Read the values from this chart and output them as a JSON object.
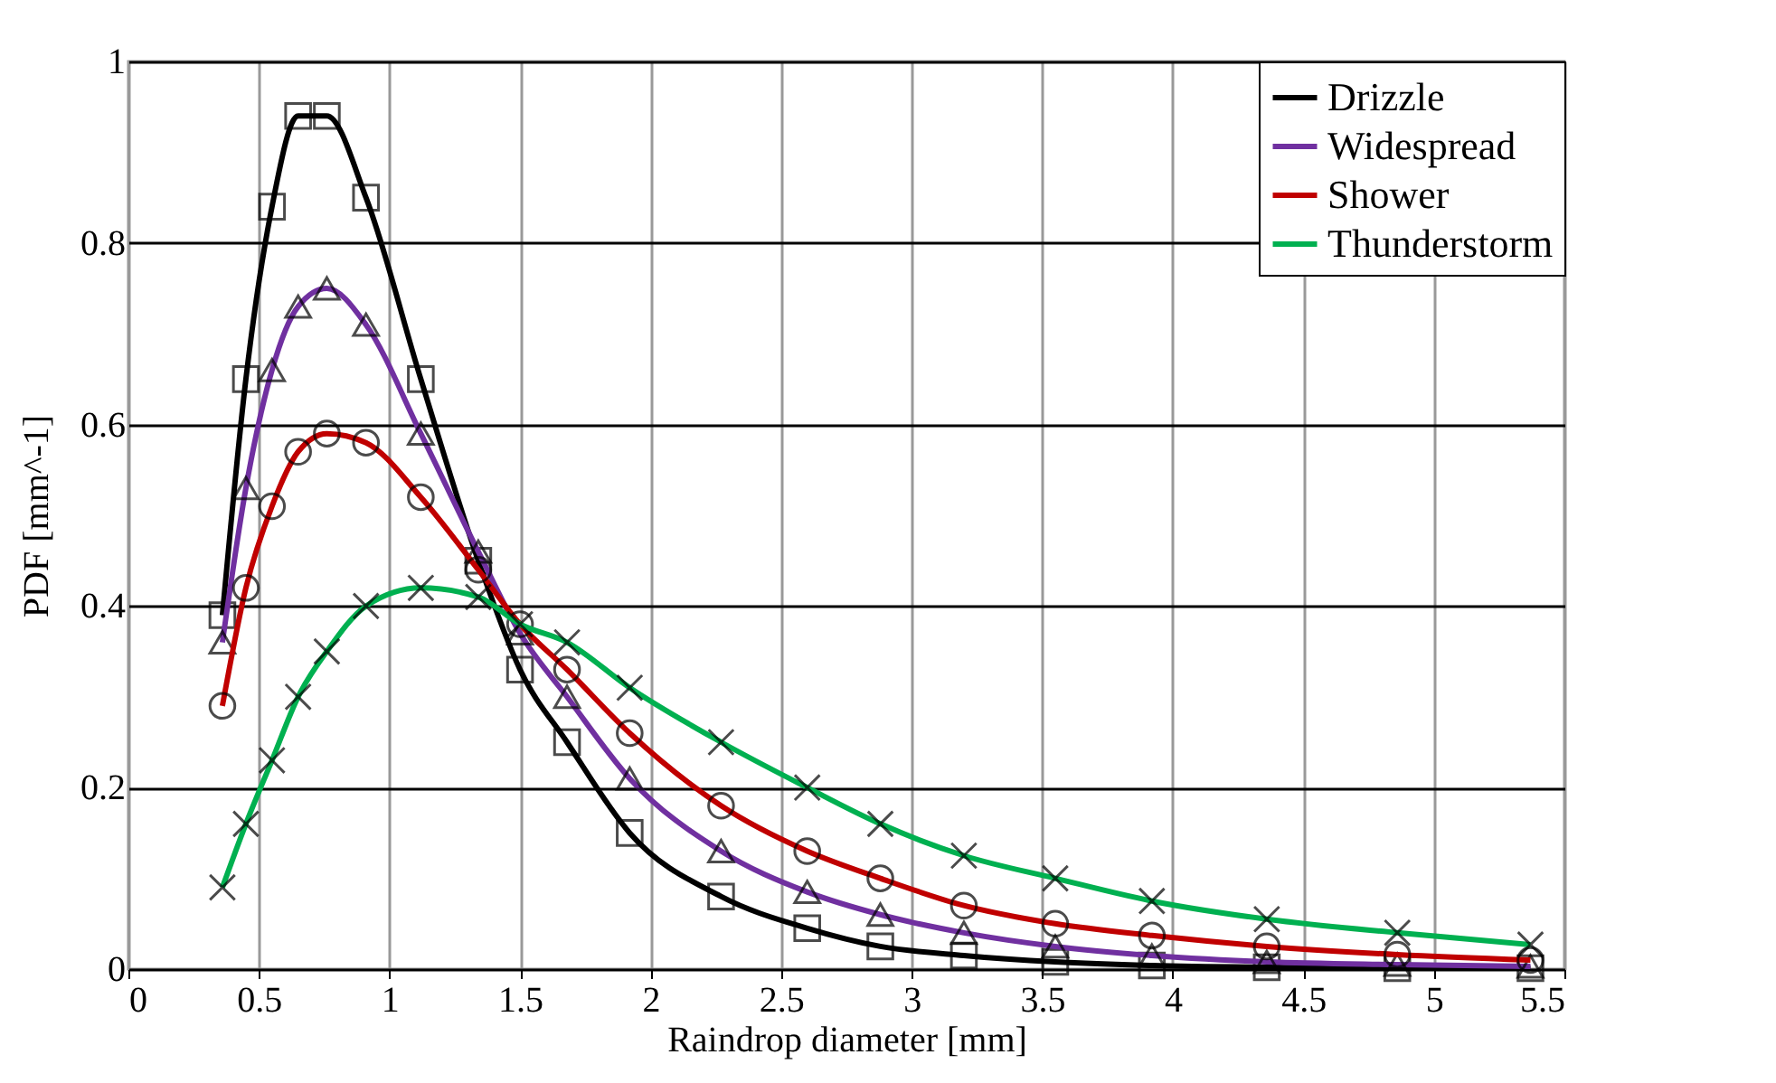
{
  "chart_data": {
    "type": "line",
    "xlabel": "Raindrop diameter [mm]",
    "ylabel": "PDF [mm^-1]",
    "x": [
      0.36,
      0.45,
      0.55,
      0.65,
      0.76,
      0.91,
      1.12,
      1.34,
      1.5,
      1.68,
      1.92,
      2.27,
      2.6,
      2.88,
      3.2,
      3.55,
      3.92,
      4.36,
      4.86,
      5.37
    ],
    "series": [
      {
        "name": "Drizzle",
        "color": "#000000",
        "marker": "square",
        "values": [
          0.39,
          0.65,
          0.84,
          0.94,
          0.94,
          0.85,
          0.65,
          0.45,
          0.33,
          0.25,
          0.15,
          0.08,
          0.045,
          0.025,
          0.015,
          0.008,
          0.004,
          0.002,
          0.001,
          0.001
        ]
      },
      {
        "name": "Widespread",
        "color": "#7030a0",
        "marker": "triangle",
        "values": [
          0.36,
          0.53,
          0.66,
          0.73,
          0.75,
          0.71,
          0.59,
          0.46,
          0.37,
          0.3,
          0.21,
          0.13,
          0.085,
          0.06,
          0.04,
          0.025,
          0.015,
          0.008,
          0.005,
          0.003
        ]
      },
      {
        "name": "Shower",
        "color": "#c00000",
        "marker": "circle",
        "values": [
          0.29,
          0.42,
          0.51,
          0.57,
          0.59,
          0.58,
          0.52,
          0.44,
          0.38,
          0.33,
          0.26,
          0.18,
          0.13,
          0.1,
          0.07,
          0.05,
          0.037,
          0.025,
          0.016,
          0.01
        ]
      },
      {
        "name": "Thunderstorm",
        "color": "#00b050",
        "marker": "cross",
        "values": [
          0.09,
          0.16,
          0.23,
          0.3,
          0.35,
          0.4,
          0.42,
          0.41,
          0.38,
          0.36,
          0.31,
          0.25,
          0.2,
          0.16,
          0.125,
          0.1,
          0.075,
          0.055,
          0.04,
          0.027
        ]
      }
    ],
    "xlim": [
      0,
      5.5
    ],
    "xticks": [
      0,
      0.5,
      1,
      1.5,
      2,
      2.5,
      3,
      3.5,
      4,
      4.5,
      5,
      5.5
    ],
    "ylim": [
      0,
      1
    ],
    "yticks": [
      0,
      0.2,
      0.4,
      0.6,
      0.8,
      1
    ],
    "grid": true,
    "legend": "top right"
  }
}
